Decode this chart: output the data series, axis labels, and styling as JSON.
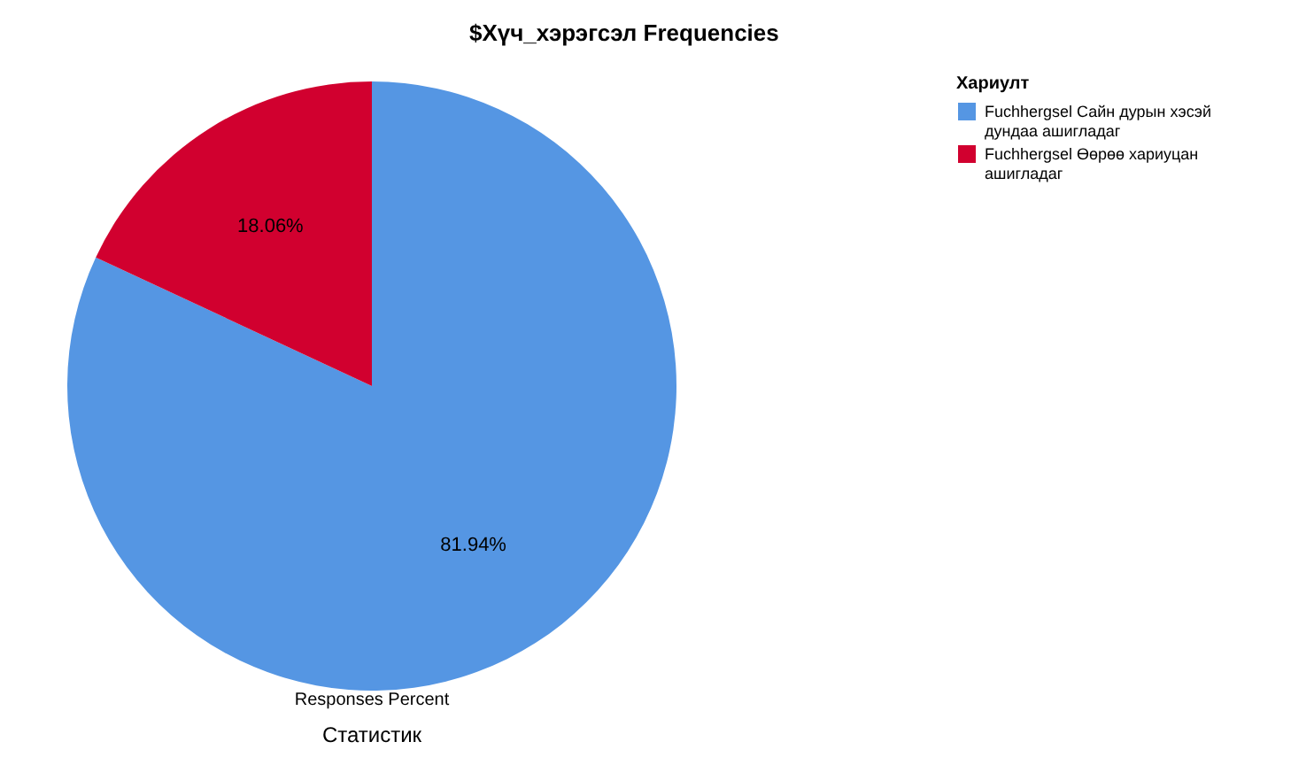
{
  "chart_data": {
    "type": "pie",
    "title": "$Хүч_хэрэгсэл Frequencies",
    "categories": [
      "Fuchhergsel Сайн дурын хэсэй дундаа ашигладаг",
      "Fuchhergsel Өөрөө хариуцан ашигладаг"
    ],
    "values": [
      81.94,
      18.06
    ],
    "colors": [
      "#5596e3",
      "#d1002f"
    ],
    "value_labels": [
      "81.94%",
      "18.06%"
    ],
    "legend_title": "Хариулт",
    "legend": "right",
    "xlabel": "Responses Percent",
    "annotations": [
      "Статистик"
    ]
  }
}
